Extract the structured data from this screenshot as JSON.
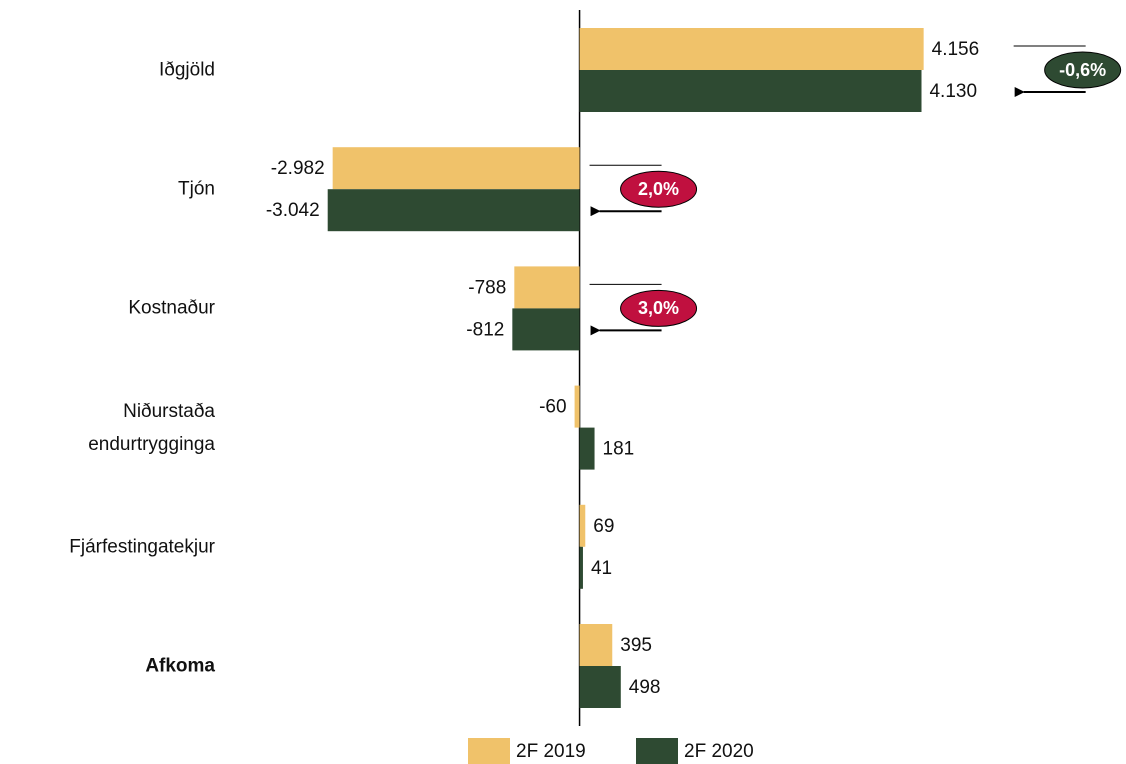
{
  "chart_data": {
    "type": "hbar",
    "categories": [
      "Iðgjöld",
      "Tjón",
      "Kostnaður",
      "Niðurstaða endurtrygginga",
      "Fjárfestingatekjur",
      "Afkoma"
    ],
    "category_bold": [
      false,
      false,
      false,
      false,
      false,
      true
    ],
    "series": [
      {
        "name": "2F 2019",
        "color": "#f0c26a",
        "values": [
          4156,
          -2982,
          -788,
          -60,
          69,
          395
        ],
        "value_labels": [
          "4.156",
          "-2.982",
          "-788",
          "-60",
          "69",
          "395"
        ]
      },
      {
        "name": "2F 2020",
        "color": "#2e4a32",
        "values": [
          4130,
          -3042,
          -812,
          181,
          41,
          498
        ],
        "value_labels": [
          "4.130",
          "-3.042",
          "-812",
          "181",
          "41",
          "498"
        ]
      }
    ],
    "xlim": [
      -7000,
      6600
    ],
    "annotations": [
      {
        "category": 0,
        "text": "-0,6%",
        "color": "#2e4a32"
      },
      {
        "category": 1,
        "text": "2,0%",
        "color": "#c0103f"
      },
      {
        "category": 2,
        "text": "3,0%",
        "color": "#c0103f"
      }
    ],
    "legend": "bottom"
  }
}
